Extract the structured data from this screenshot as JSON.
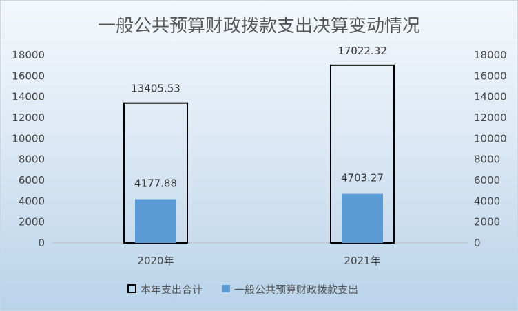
{
  "chart_data": {
    "type": "bar",
    "title": "一般公共预算财政拨款支出决算变动情况",
    "categories": [
      "2020年",
      "2021年"
    ],
    "series": [
      {
        "name": "本年支出合计",
        "values": [
          13405.53,
          17022.32
        ],
        "style": "outline",
        "color": "#000000",
        "axis": "secondary"
      },
      {
        "name": "一般公共预算财政拨款支出",
        "values": [
          4177.88,
          4703.27
        ],
        "style": "filled",
        "color": "#5b9bd5",
        "axis": "primary"
      }
    ],
    "ylim": [
      0,
      18000
    ],
    "yticks": [
      0,
      2000,
      4000,
      6000,
      8000,
      10000,
      12000,
      14000,
      16000,
      18000
    ],
    "y2lim": [
      0,
      18000
    ],
    "y2ticks": [
      0,
      2000,
      4000,
      6000,
      8000,
      10000,
      12000,
      14000,
      16000,
      18000
    ],
    "xlabel": "",
    "ylabel": "",
    "grid": false,
    "legend": "bottom",
    "data_labels": true
  }
}
